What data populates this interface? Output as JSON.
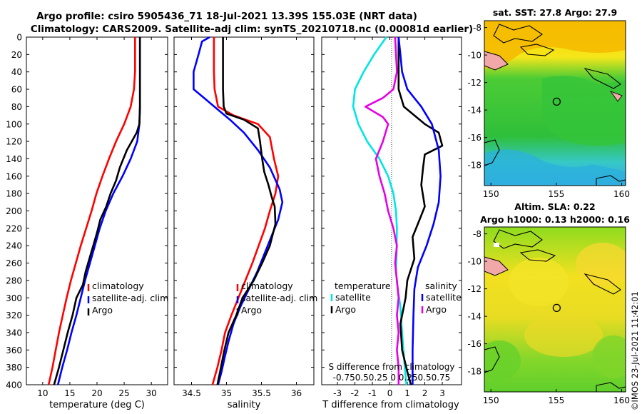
{
  "header": {
    "line1": "Argo profile: csiro 5905436_71 18-Jul-2021 13.39S 155.03E (NRT data)",
    "line2": "Climatology: CARS2009. Satellite-adj clim: synTS_20210718.nc (0.00081d earlier)"
  },
  "colors": {
    "climatology": "#ff0000",
    "satellite": "#0000ff",
    "argo": "#000000",
    "t_diff": "#00e5e5",
    "s_diff": "#e600e6"
  },
  "chart_data": [
    {
      "id": "temperature",
      "type": "line",
      "xlabel": "temperature (deg C)",
      "ylabel": "",
      "xlim": [
        7,
        33
      ],
      "ylim": [
        400,
        0
      ],
      "xticks": [
        10,
        15,
        20,
        25,
        30
      ],
      "yticks": [
        0,
        20,
        40,
        60,
        80,
        100,
        120,
        140,
        160,
        180,
        200,
        220,
        240,
        260,
        280,
        300,
        320,
        340,
        360,
        380,
        400
      ],
      "legend": {
        "position": "lower-right",
        "entries": [
          "climatology",
          "satellite-adj. clim",
          "Argo"
        ]
      },
      "series": [
        {
          "name": "climatology",
          "color": "red",
          "points": [
            [
              27.0,
              0
            ],
            [
              27.0,
              40
            ],
            [
              26.8,
              60
            ],
            [
              26.2,
              80
            ],
            [
              25.0,
              100
            ],
            [
              23.5,
              120
            ],
            [
              22.2,
              140
            ],
            [
              21.0,
              160
            ],
            [
              19.9,
              180
            ],
            [
              19.0,
              200
            ],
            [
              18.0,
              220
            ],
            [
              17.0,
              240
            ],
            [
              16.1,
              260
            ],
            [
              15.2,
              280
            ],
            [
              14.4,
              300
            ],
            [
              13.7,
              320
            ],
            [
              13.0,
              340
            ],
            [
              12.4,
              360
            ],
            [
              11.8,
              380
            ],
            [
              11.1,
              400
            ]
          ]
        },
        {
          "name": "satellite-adj. clim",
          "color": "blue",
          "points": [
            [
              27.9,
              0
            ],
            [
              27.9,
              40
            ],
            [
              27.9,
              80
            ],
            [
              27.8,
              100
            ],
            [
              27.4,
              120
            ],
            [
              26.2,
              140
            ],
            [
              24.7,
              160
            ],
            [
              23.0,
              180
            ],
            [
              21.6,
              200
            ],
            [
              20.5,
              220
            ],
            [
              19.6,
              240
            ],
            [
              18.7,
              260
            ],
            [
              17.8,
              280
            ],
            [
              17.0,
              300
            ],
            [
              16.2,
              320
            ],
            [
              15.3,
              340
            ],
            [
              14.5,
              360
            ],
            [
              13.6,
              380
            ],
            [
              12.8,
              400
            ]
          ]
        },
        {
          "name": "Argo",
          "color": "black",
          "points": [
            [
              27.9,
              0
            ],
            [
              27.9,
              60
            ],
            [
              27.9,
              80
            ],
            [
              27.8,
              100
            ],
            [
              27.3,
              110
            ],
            [
              25.5,
              130
            ],
            [
              24.2,
              150
            ],
            [
              23.5,
              165
            ],
            [
              22.5,
              180
            ],
            [
              21.7,
              195
            ],
            [
              20.6,
              210
            ],
            [
              20.0,
              225
            ],
            [
              19.3,
              240
            ],
            [
              18.6,
              255
            ],
            [
              17.9,
              270
            ],
            [
              17.4,
              285
            ],
            [
              16.2,
              300
            ],
            [
              15.5,
              320
            ],
            [
              14.6,
              340
            ],
            [
              13.8,
              360
            ],
            [
              13.0,
              380
            ],
            [
              12.1,
              400
            ]
          ]
        }
      ]
    },
    {
      "id": "salinity",
      "type": "line",
      "xlabel": "salinity",
      "ylabel": "",
      "xlim": [
        34.25,
        36.25
      ],
      "ylim": [
        400,
        0
      ],
      "xticks": [
        34.5,
        35,
        35.5,
        36
      ],
      "xtick_labels": [
        "34.5",
        "35",
        "35.5",
        "36"
      ],
      "legend": {
        "position": "lower-right",
        "entries": [
          "climatology",
          "satellite-adj. clim",
          "Argo"
        ]
      },
      "series": [
        {
          "name": "climatology",
          "color": "red",
          "points": [
            [
              34.82,
              0
            ],
            [
              34.82,
              40
            ],
            [
              34.83,
              60
            ],
            [
              34.88,
              80
            ],
            [
              35.1,
              90
            ],
            [
              35.45,
              100
            ],
            [
              35.62,
              115
            ],
            [
              35.68,
              140
            ],
            [
              35.74,
              160
            ],
            [
              35.7,
              180
            ],
            [
              35.62,
              200
            ],
            [
              35.55,
              220
            ],
            [
              35.46,
              240
            ],
            [
              35.37,
              260
            ],
            [
              35.27,
              280
            ],
            [
              35.17,
              300
            ],
            [
              35.07,
              320
            ],
            [
              34.98,
              340
            ],
            [
              34.93,
              360
            ],
            [
              34.87,
              380
            ],
            [
              34.8,
              400
            ]
          ]
        },
        {
          "name": "satellite-adj. clim",
          "color": "blue",
          "points": [
            [
              34.76,
              0
            ],
            [
              34.65,
              5
            ],
            [
              34.6,
              20
            ],
            [
              34.53,
              40
            ],
            [
              34.53,
              60
            ],
            [
              34.68,
              70
            ],
            [
              34.9,
              85
            ],
            [
              35.05,
              95
            ],
            [
              35.25,
              110
            ],
            [
              35.45,
              130
            ],
            [
              35.62,
              150
            ],
            [
              35.76,
              175
            ],
            [
              35.8,
              190
            ],
            [
              35.74,
              210
            ],
            [
              35.64,
              230
            ],
            [
              35.54,
              250
            ],
            [
              35.44,
              270
            ],
            [
              35.32,
              290
            ],
            [
              35.2,
              310
            ],
            [
              35.1,
              330
            ],
            [
              35.03,
              350
            ],
            [
              34.97,
              370
            ],
            [
              34.93,
              385
            ],
            [
              34.88,
              400
            ]
          ]
        },
        {
          "name": "Argo",
          "color": "black",
          "points": [
            [
              34.95,
              0
            ],
            [
              34.95,
              40
            ],
            [
              34.95,
              60
            ],
            [
              34.96,
              80
            ],
            [
              35.0,
              88
            ],
            [
              35.25,
              95
            ],
            [
              35.45,
              105
            ],
            [
              35.48,
              120
            ],
            [
              35.51,
              140
            ],
            [
              35.54,
              155
            ],
            [
              35.6,
              170
            ],
            [
              35.65,
              185
            ],
            [
              35.69,
              195
            ],
            [
              35.7,
              215
            ],
            [
              35.62,
              240
            ],
            [
              35.51,
              260
            ],
            [
              35.39,
              280
            ],
            [
              35.23,
              300
            ],
            [
              35.14,
              320
            ],
            [
              35.03,
              340
            ],
            [
              34.97,
              360
            ],
            [
              34.92,
              380
            ],
            [
              34.87,
              400
            ]
          ]
        }
      ]
    },
    {
      "id": "difference",
      "type": "line",
      "xlabel": "T difference from climatology",
      "xlabel_top": "S difference from climatology",
      "s_ticks_label": "-0.750.50.25  0  0.250.50.75",
      "ylabel": "",
      "xlim": [
        -3.9,
        4.1
      ],
      "ylim": [
        400,
        0
      ],
      "xticks": [
        -3,
        -2,
        -1,
        0,
        1,
        2,
        3
      ],
      "legend_temperature": {
        "title": "temperature",
        "entries": [
          "satellite",
          "Argo"
        ]
      },
      "legend_salinity": {
        "title": "salinity",
        "entries": [
          "satellite",
          "Argo"
        ]
      },
      "series": [
        {
          "name": "T satellite",
          "color": "cyan",
          "points": [
            [
              -0.2,
              0
            ],
            [
              -0.9,
              20
            ],
            [
              -1.5,
              40
            ],
            [
              -2.0,
              60
            ],
            [
              -2.1,
              80
            ],
            [
              -1.8,
              100
            ],
            [
              -1.3,
              120
            ],
            [
              -0.6,
              140
            ],
            [
              -0.1,
              160
            ],
            [
              0.2,
              180
            ],
            [
              0.35,
              200
            ],
            [
              0.4,
              220
            ],
            [
              0.38,
              250
            ],
            [
              0.35,
              270
            ],
            [
              0.45,
              290
            ],
            [
              0.6,
              310
            ],
            [
              0.7,
              340
            ],
            [
              0.85,
              380
            ],
            [
              0.95,
              400
            ]
          ]
        },
        {
          "name": "T Argo",
          "color": "black",
          "points": [
            [
              0.5,
              0
            ],
            [
              0.5,
              60
            ],
            [
              0.8,
              80
            ],
            [
              2.0,
              100
            ],
            [
              2.8,
              110
            ],
            [
              3.0,
              125
            ],
            [
              2.0,
              135
            ],
            [
              1.9,
              150
            ],
            [
              1.8,
              170
            ],
            [
              2.0,
              195
            ],
            [
              1.7,
              210
            ],
            [
              1.3,
              230
            ],
            [
              1.4,
              255
            ],
            [
              1.0,
              280
            ],
            [
              0.9,
              300
            ],
            [
              0.6,
              330
            ],
            [
              0.7,
              360
            ],
            [
              1.0,
              385
            ],
            [
              1.2,
              400
            ]
          ]
        },
        {
          "name": "S satellite",
          "color": "blue",
          "points": [
            [
              0.5,
              0
            ],
            [
              0.6,
              20
            ],
            [
              0.7,
              40
            ],
            [
              1.0,
              60
            ],
            [
              1.8,
              80
            ],
            [
              2.4,
              100
            ],
            [
              2.8,
              130
            ],
            [
              2.9,
              160
            ],
            [
              2.8,
              190
            ],
            [
              2.5,
              215
            ],
            [
              2.1,
              240
            ],
            [
              1.6,
              265
            ],
            [
              1.4,
              290
            ],
            [
              1.35,
              320
            ],
            [
              1.3,
              360
            ],
            [
              1.3,
              400
            ]
          ]
        },
        {
          "name": "S Argo",
          "color": "magenta",
          "points": [
            [
              0.3,
              0
            ],
            [
              0.4,
              40
            ],
            [
              0.2,
              60
            ],
            [
              -0.4,
              70
            ],
            [
              -1.4,
              80
            ],
            [
              -0.4,
              92
            ],
            [
              -0.1,
              100
            ],
            [
              -0.4,
              120
            ],
            [
              -0.8,
              140
            ],
            [
              -0.6,
              160
            ],
            [
              -0.3,
              180
            ],
            [
              -0.1,
              200
            ],
            [
              0.2,
              220
            ],
            [
              0.4,
              240
            ],
            [
              0.3,
              260
            ],
            [
              0.4,
              280
            ],
            [
              0.5,
              300
            ],
            [
              0.4,
              320
            ],
            [
              0.5,
              340
            ],
            [
              0.4,
              360
            ],
            [
              0.5,
              380
            ],
            [
              0.5,
              400
            ]
          ]
        }
      ]
    }
  ],
  "maps": [
    {
      "title": "sat. SST: 27.8 Argo: 27.9",
      "xticks": [
        150,
        155,
        160
      ],
      "yticks": [
        -8,
        -10,
        -12,
        -14,
        -16,
        -18
      ],
      "xlim": [
        149.5,
        160.3
      ],
      "ylim": [
        -7.5,
        -19.5
      ],
      "profile_location": [
        155.03,
        -13.39
      ]
    },
    {
      "title_line1": "Altim. SLA: 0.22",
      "title_line2": "Argo h1000: 0.13 h2000: 0.16",
      "xticks": [
        150,
        155,
        160
      ],
      "yticks": [
        -8,
        -10,
        -12,
        -14,
        -16,
        -18
      ],
      "xlim": [
        149.5,
        160.3
      ],
      "ylim": [
        -7.5,
        -19.5
      ],
      "profile_location": [
        155.03,
        -13.39
      ]
    }
  ],
  "stamp": "©IMOS 23-Jul-2021 11:42:01"
}
